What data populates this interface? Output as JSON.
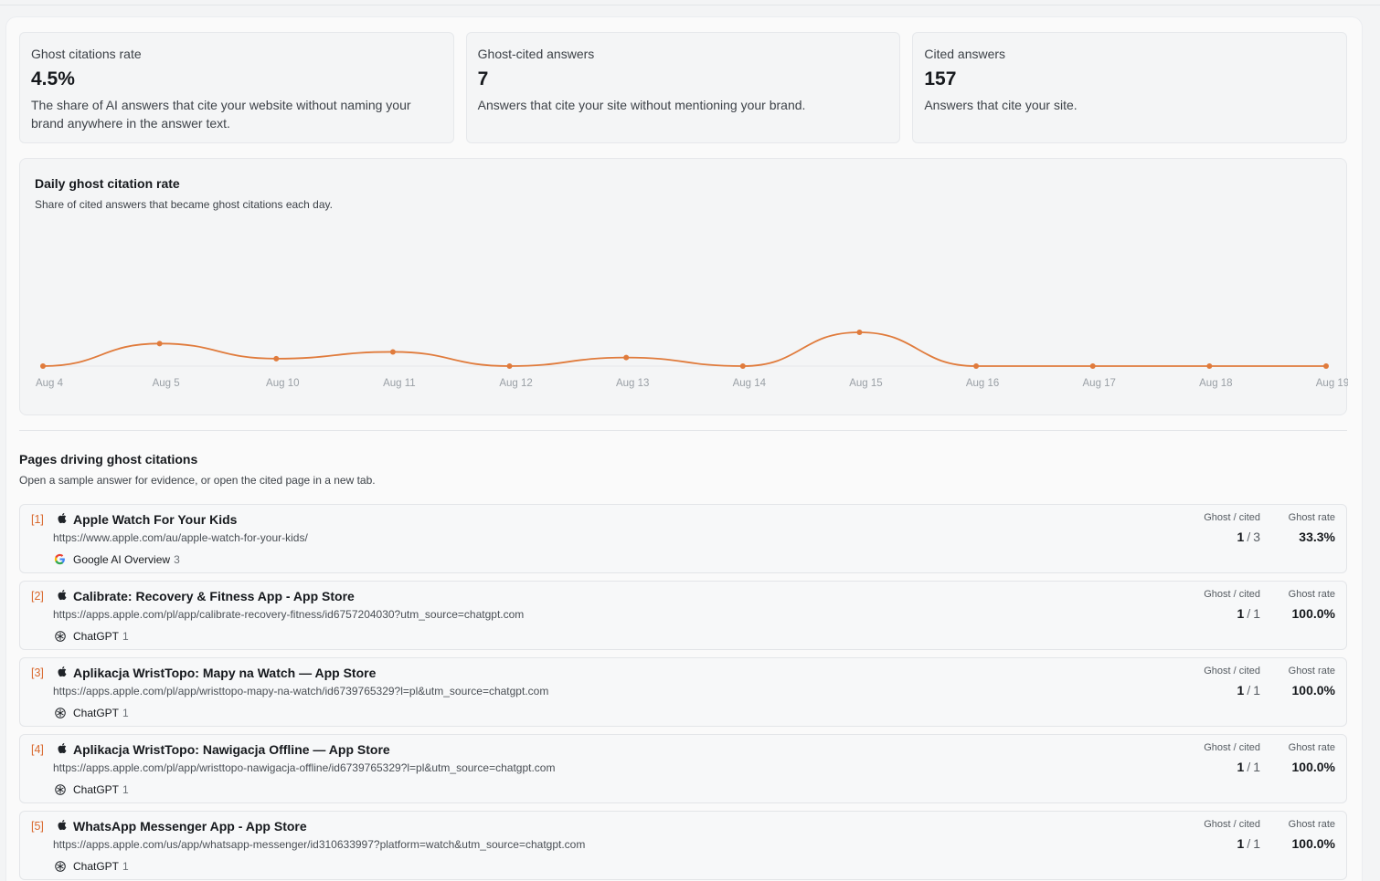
{
  "stats": [
    {
      "label": "Ghost citations rate",
      "value": "4.5%",
      "desc": "The share of AI answers that cite your website without naming your brand anywhere in the answer text."
    },
    {
      "label": "Ghost-cited answers",
      "value": "7",
      "desc": "Answers that cite your site without mentioning your brand."
    },
    {
      "label": "Cited answers",
      "value": "157",
      "desc": "Answers that cite your site."
    }
  ],
  "chart": {
    "title": "Daily ghost citation rate",
    "subtitle": "Share of cited answers that became ghost citations each day."
  },
  "chart_data": {
    "type": "line",
    "title": "Daily ghost citation rate",
    "x": [
      "Aug 4",
      "Aug 5",
      "Aug 10",
      "Aug 11",
      "Aug 12",
      "Aug 13",
      "Aug 14",
      "Aug 15",
      "Aug 16",
      "Aug 17",
      "Aug 18",
      "Aug 19"
    ],
    "series": [
      {
        "values": [
          0,
          10,
          3.3,
          6.3,
          0,
          3.8,
          0,
          15,
          0,
          0,
          0,
          0
        ],
        "color": "#e07b3c"
      }
    ],
    "ylim": [
      0,
      15
    ],
    "grid": false,
    "legend": "none"
  },
  "pages_section": {
    "title": "Pages driving ghost citations",
    "subtitle": "Open a sample answer for evidence, or open the cited page in a new tab."
  },
  "rows": [
    {
      "index": "[1]",
      "title": "Apple Watch For Your Kids",
      "url": "https://www.apple.com/au/apple-watch-for-your-kids/",
      "source": "Google AI Overview",
      "source_icon": "google-icon",
      "source_count": "3",
      "ghost_label": "Ghost / cited",
      "ghost": "1",
      "cited": "3",
      "rate_label": "Ghost rate",
      "rate": "33.3%"
    },
    {
      "index": "[2]",
      "title": "Calibrate: Recovery & Fitness App - App Store",
      "url": "https://apps.apple.com/pl/app/calibrate-recovery-fitness/id6757204030?utm_source=chatgpt.com",
      "source": "ChatGPT",
      "source_icon": "chatgpt-icon",
      "source_count": "1",
      "ghost_label": "Ghost / cited",
      "ghost": "1",
      "cited": "1",
      "rate_label": "Ghost rate",
      "rate": "100.0%"
    },
    {
      "index": "[3]",
      "title": "Aplikacja WristTopo: Mapy na Watch — App Store",
      "url": "https://apps.apple.com/pl/app/wristtopo-mapy-na-watch/id6739765329?l=pl&utm_source=chatgpt.com",
      "source": "ChatGPT",
      "source_icon": "chatgpt-icon",
      "source_count": "1",
      "ghost_label": "Ghost / cited",
      "ghost": "1",
      "cited": "1",
      "rate_label": "Ghost rate",
      "rate": "100.0%"
    },
    {
      "index": "[4]",
      "title": "Aplikacja WristTopo: Nawigacja Offline — App Store",
      "url": "https://apps.apple.com/pl/app/wristtopo-nawigacja-offline/id6739765329?l=pl&utm_source=chatgpt.com",
      "source": "ChatGPT",
      "source_icon": "chatgpt-icon",
      "source_count": "1",
      "ghost_label": "Ghost / cited",
      "ghost": "1",
      "cited": "1",
      "rate_label": "Ghost rate",
      "rate": "100.0%"
    },
    {
      "index": "[5]",
      "title": "WhatsApp Messenger App - App Store",
      "url": "https://apps.apple.com/us/app/whatsapp-messenger/id310633997?platform=watch&utm_source=chatgpt.com",
      "source": "ChatGPT",
      "source_icon": "chatgpt-icon",
      "source_count": "1",
      "ghost_label": "Ghost / cited",
      "ghost": "1",
      "cited": "1",
      "rate_label": "Ghost rate",
      "rate": "100.0%"
    }
  ]
}
